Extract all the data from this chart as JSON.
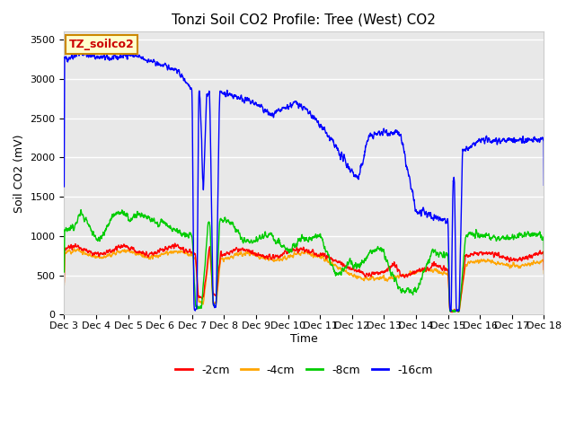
{
  "title": "Tonzi Soil CO2 Profile: Tree (West) CO2",
  "ylabel": "Soil CO2 (mV)",
  "xlabel": "Time",
  "legend_label": "TZ_soilco2",
  "series_labels": [
    "-2cm",
    "-4cm",
    "-8cm",
    "-16cm"
  ],
  "series_colors": [
    "#ff0000",
    "#ffa500",
    "#00cc00",
    "#0000ff"
  ],
  "ylim": [
    0,
    3600
  ],
  "yticks": [
    0,
    500,
    1000,
    1500,
    2000,
    2500,
    3000,
    3500
  ],
  "xtick_labels": [
    "Dec 3",
    "Dec 4",
    "Dec 5",
    "Dec 6",
    "Dec 7",
    "Dec 8",
    "Dec 9",
    "Dec 10",
    "Dec 11",
    "Dec 12",
    "Dec 13",
    "Dec 14",
    "Dec 15",
    "Dec 16",
    "Dec 17",
    "Dec 18"
  ],
  "bg_color": "#e8e8e8",
  "fig_bg": "#ffffff",
  "grid_color": "#ffffff",
  "title_fontsize": 11,
  "axis_fontsize": 9,
  "tick_fontsize": 8,
  "legend_fontsize": 9
}
